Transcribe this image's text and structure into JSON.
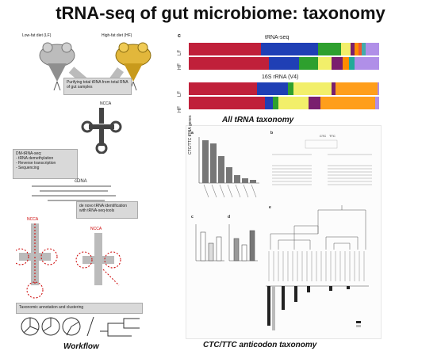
{
  "title": "tRNA-seq of gut microbiome: taxonomy",
  "workflow": {
    "lf_label": "Low-fat diet (LF)",
    "hf_label": "High-fat diet (HF)",
    "purify": "Purifying total tRNA from total RNA of gut samples",
    "ncca_top": "NCCA",
    "dm_title": "DM-tRNA-seq:",
    "dm_steps": [
      "- tRNA demethylation",
      "- Reverse transcription",
      "- Sequencing"
    ],
    "cdna": "cDNA",
    "denovo": "de novo tRNA identification with tRNA-seq-tools",
    "ncca_left": "NCCA",
    "ncca_right": "NCCA",
    "annot": "Taxonomic annotation and clustering",
    "caption": "Workflow"
  },
  "panel_c": {
    "label": "c",
    "header_trna": "tRNA-seq",
    "header_16s": "16S rRNA (V4)",
    "lf": "LF",
    "hf": "HF",
    "caption": "All tRNA taxonomy"
  },
  "lower": {
    "caption": "CTC/TTC anticodon taxonomy",
    "panel_a": "a",
    "panel_b": "b",
    "panel_c": "c",
    "panel_d": "d",
    "panel_e": "e",
    "ylabel_a": "CTC/TTC tRNA genes",
    "b_ctc": "CTC",
    "b_ttc": "TTC"
  }
}
